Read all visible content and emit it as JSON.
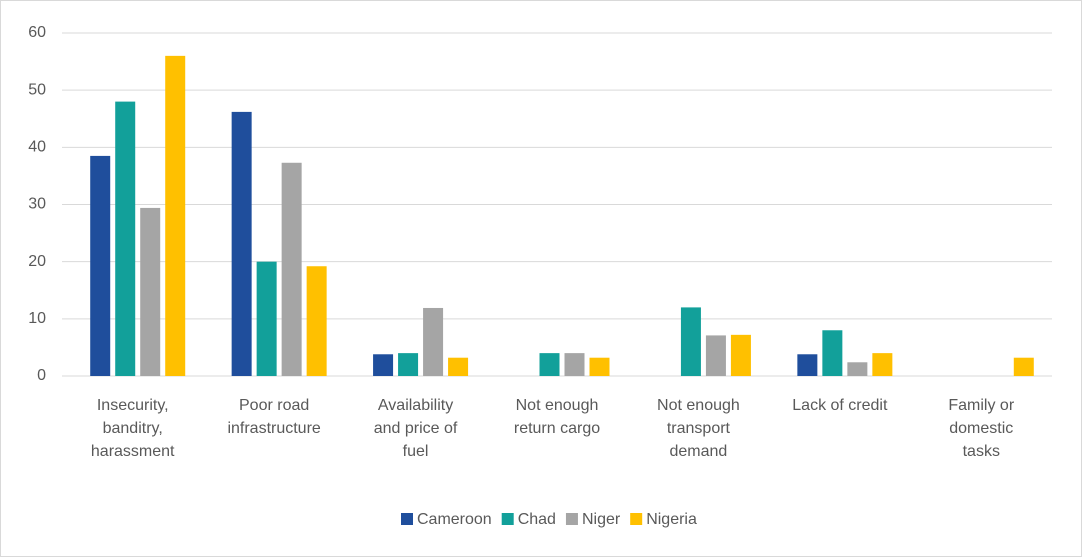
{
  "chart_data": {
    "type": "bar",
    "categories": [
      "Insecurity,\nbanditry,\nharassment",
      "Poor road\ninfrastructure",
      "Availability\nand price of\nfuel",
      "Not enough\nreturn cargo",
      "Not enough\ntransport\ndemand",
      "Lack of credit",
      "Family or\ndomestic\ntasks"
    ],
    "series": [
      {
        "name": "Cameroon",
        "color": "#1f4e9c",
        "values": [
          38.5,
          46.2,
          3.8,
          0,
          0,
          3.8,
          0
        ]
      },
      {
        "name": "Chad",
        "color": "#12a09a",
        "values": [
          48,
          20,
          4,
          4,
          12,
          8,
          0
        ]
      },
      {
        "name": "Niger",
        "color": "#a5a5a5",
        "values": [
          29.4,
          37.3,
          11.9,
          4,
          7.1,
          2.4,
          0
        ]
      },
      {
        "name": "Nigeria",
        "color": "#ffc000",
        "values": [
          56,
          19.2,
          3.2,
          3.2,
          7.2,
          4,
          3.2
        ]
      }
    ],
    "ylim": [
      0,
      60
    ],
    "yticks": [
      0,
      10,
      20,
      30,
      40,
      50,
      60
    ],
    "grid": true,
    "legend": "bottom"
  }
}
